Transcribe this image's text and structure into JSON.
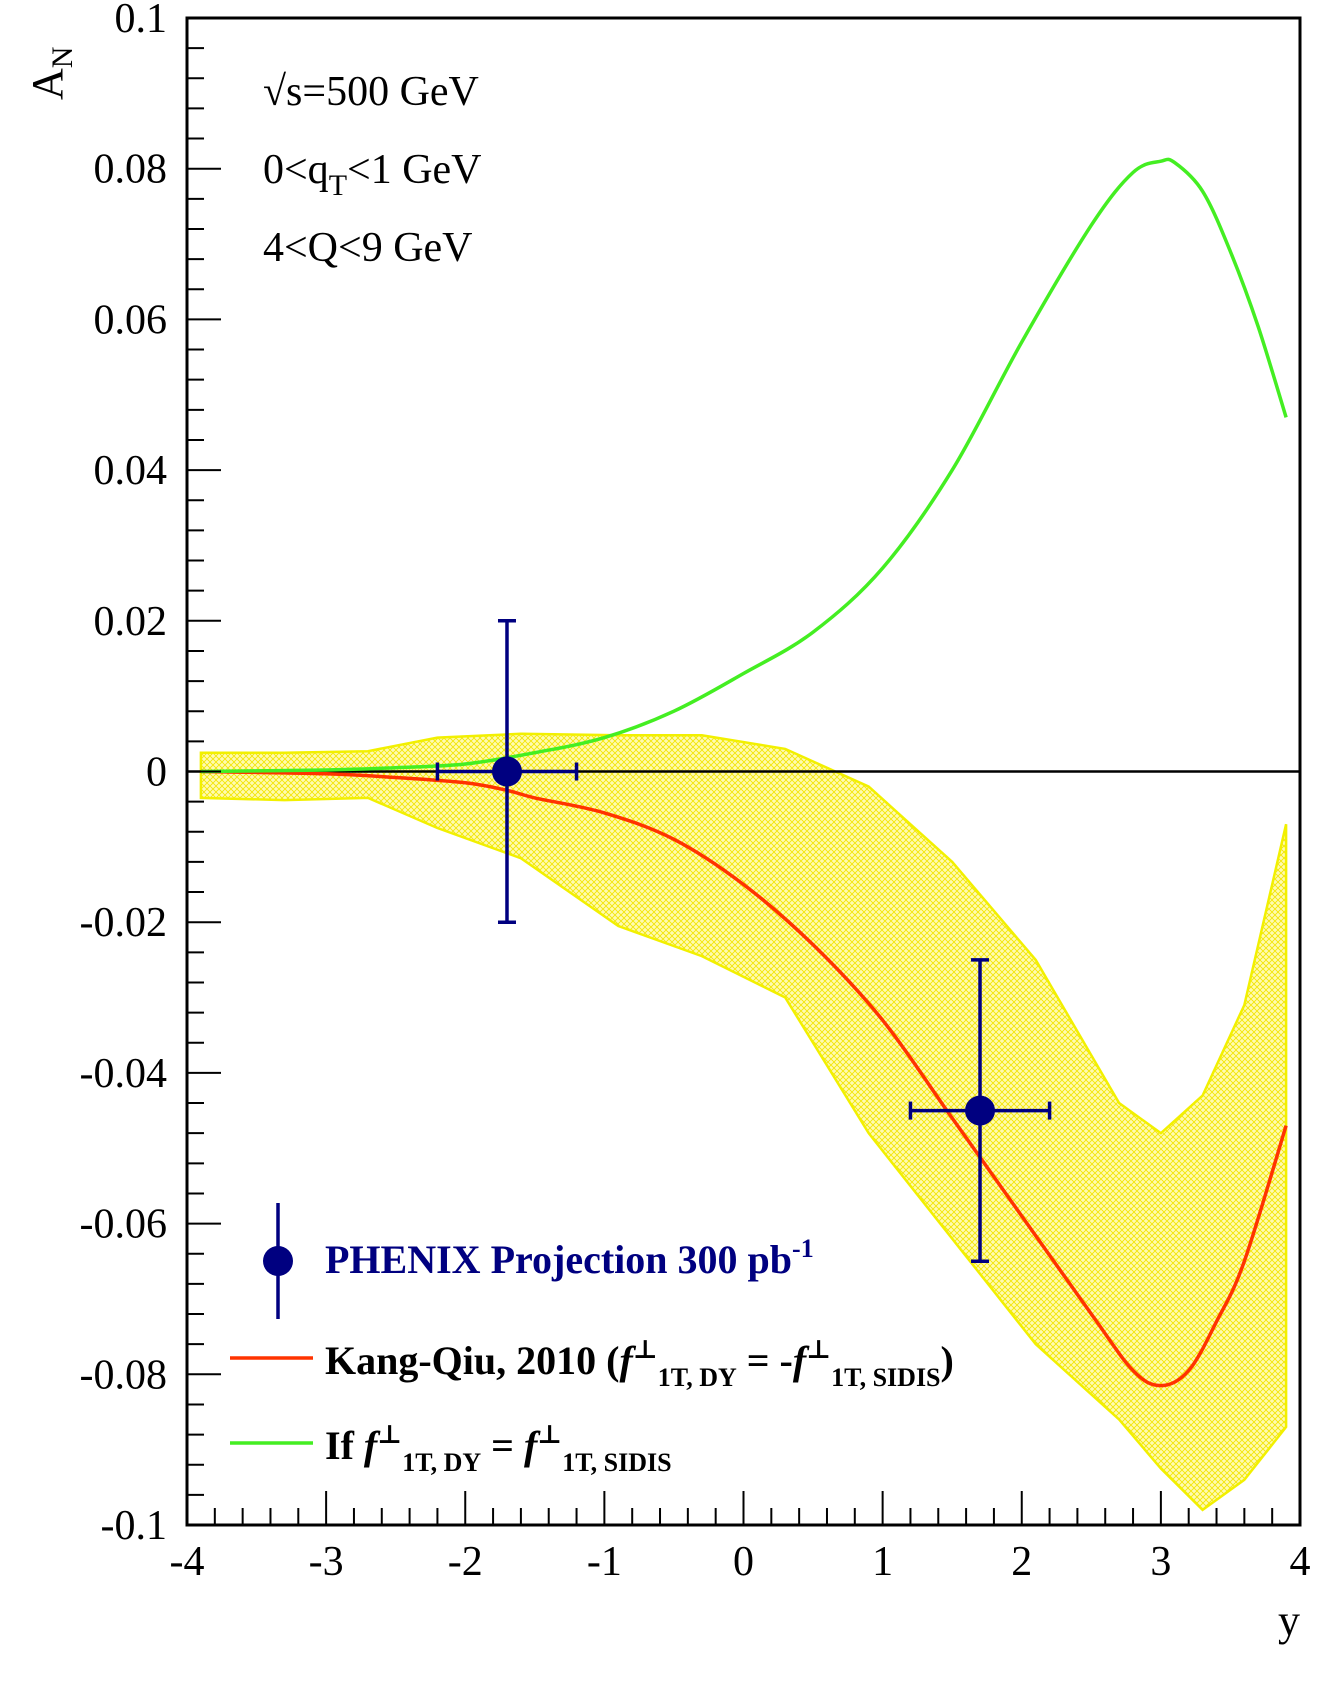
{
  "chart_data": {
    "type": "line",
    "title": "",
    "xlabel": "y",
    "ylabel": "A",
    "ylabel_sub": "N",
    "xlim": [
      -4,
      4
    ],
    "ylim": [
      -0.1,
      0.1
    ],
    "x_ticks": [
      -4,
      -3,
      -2,
      -1,
      0,
      1,
      2,
      3,
      4
    ],
    "x_tick_labels": [
      "-4",
      "-3",
      "-2",
      "-1",
      "0",
      "1",
      "2",
      "3",
      "4"
    ],
    "y_ticks": [
      -0.1,
      -0.08,
      -0.06,
      -0.04,
      -0.02,
      0,
      0.02,
      0.04,
      0.06,
      0.08,
      0.1
    ],
    "y_tick_labels": [
      "-0.1",
      "-0.08",
      "-0.06",
      "-0.04",
      "-0.02",
      "0",
      "0.02",
      "0.04",
      "0.06",
      "0.08",
      "0.1"
    ],
    "grid": false,
    "legend_position": "bottom-left",
    "annotations": [
      {
        "parts": [
          {
            "t": "√s=500 GeV"
          }
        ]
      },
      {
        "parts": [
          {
            "t": "0<q"
          },
          {
            "t": "T",
            "sub": true
          },
          {
            "t": "<1 GeV"
          }
        ]
      },
      {
        "parts": [
          {
            "t": "4<Q<9 GeV"
          }
        ]
      }
    ],
    "legend": [
      {
        "series": "PHENIX Projection 300 pb-1",
        "color": "#000080",
        "parts": [
          {
            "t": "PHENIX Projection 300 pb"
          },
          {
            "t": "-1",
            "sup": true
          }
        ]
      },
      {
        "series": "Kang-Qiu, 2010",
        "color": "#000000",
        "parts": [
          {
            "t": "Kang-Qiu, 2010 ("
          },
          {
            "t": "f",
            "italic": true
          },
          {
            "t": "⊥",
            "sup": true
          },
          {
            "t": "1T, DY",
            "sub": true
          },
          {
            "t": " = -"
          },
          {
            "t": "f",
            "italic": true
          },
          {
            "t": "⊥",
            "sup": true
          },
          {
            "t": "1T, SIDIS",
            "sub": true
          },
          {
            "t": ")"
          }
        ]
      },
      {
        "series": "If f1T,DY = f1T,SIDIS",
        "color": "#000000",
        "parts": [
          {
            "t": "If "
          },
          {
            "t": "f",
            "italic": true
          },
          {
            "t": "⊥",
            "sup": true
          },
          {
            "t": "1T, DY",
            "sub": true
          },
          {
            "t": " = "
          },
          {
            "t": "f",
            "italic": true
          },
          {
            "t": "⊥",
            "sup": true
          },
          {
            "t": "1T, SIDIS",
            "sub": true
          }
        ]
      }
    ],
    "series": [
      {
        "name": "PHENIX Projection 300 pb-1",
        "kind": "points",
        "color": "#000080",
        "points": [
          {
            "x": -1.7,
            "y": 0.0,
            "xerr": 0.5,
            "yerr": 0.02
          },
          {
            "x": 1.7,
            "y": -0.045,
            "xerr": 0.5,
            "yerr": 0.02
          }
        ]
      },
      {
        "name": "Kang-Qiu, 2010",
        "kind": "line",
        "color": "#ff3300",
        "x": [
          -3.9,
          -3.0,
          -2.5,
          -2.0,
          -1.7,
          -1.5,
          -1.0,
          -0.5,
          0.0,
          0.5,
          1.0,
          1.5,
          2.0,
          2.5,
          2.8,
          3.0,
          3.2,
          3.4,
          3.6,
          3.9
        ],
        "y": [
          0.0,
          -0.0003,
          -0.0008,
          -0.0015,
          -0.0025,
          -0.0035,
          -0.0055,
          -0.009,
          -0.015,
          -0.023,
          -0.033,
          -0.046,
          -0.059,
          -0.072,
          -0.0795,
          -0.0815,
          -0.0795,
          -0.073,
          -0.065,
          -0.047
        ]
      },
      {
        "name": "If f1T,DY = f1T,SIDIS",
        "kind": "line",
        "color": "#44ee22",
        "x": [
          -3.9,
          -3.0,
          -2.5,
          -2.0,
          -1.5,
          -1.0,
          -0.5,
          0.0,
          0.5,
          1.0,
          1.5,
          2.0,
          2.5,
          2.8,
          3.0,
          3.1,
          3.3,
          3.5,
          3.7,
          3.9
        ],
        "y": [
          0.0,
          0.0002,
          0.0005,
          0.001,
          0.0025,
          0.0045,
          0.008,
          0.013,
          0.0185,
          0.027,
          0.04,
          0.057,
          0.0725,
          0.0795,
          0.081,
          0.0808,
          0.077,
          0.069,
          0.059,
          0.047
        ]
      },
      {
        "name": "uncertainty band",
        "kind": "band",
        "color": "#f2f000",
        "x": [
          -3.9,
          -3.3,
          -2.7,
          -2.2,
          -1.6,
          -0.9,
          -0.3,
          0.3,
          0.9,
          1.5,
          2.1,
          2.7,
          3.0,
          3.3,
          3.6,
          3.9
        ],
        "upper": [
          0.0025,
          0.0025,
          0.0027,
          0.0045,
          0.005,
          0.0048,
          0.0048,
          0.003,
          -0.002,
          -0.012,
          -0.025,
          -0.044,
          -0.048,
          -0.043,
          -0.031,
          -0.007
        ],
        "lower": [
          -0.0035,
          -0.0038,
          -0.0035,
          -0.0075,
          -0.0115,
          -0.0205,
          -0.0245,
          -0.03,
          -0.048,
          -0.062,
          -0.076,
          -0.086,
          -0.0925,
          -0.098,
          -0.094,
          -0.087
        ]
      }
    ]
  }
}
